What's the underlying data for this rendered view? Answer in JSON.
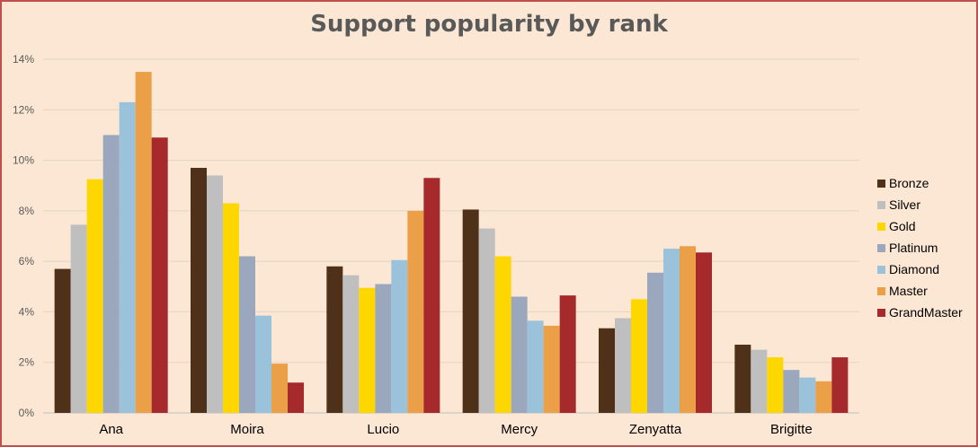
{
  "chart_data": {
    "type": "bar",
    "title": "Support popularity by rank",
    "xlabel": "",
    "ylabel": "",
    "ylim": [
      0,
      14
    ],
    "y_ticks": [
      "0%",
      "2%",
      "4%",
      "6%",
      "8%",
      "10%",
      "12%",
      "14%"
    ],
    "grid": true,
    "legend_position": "right",
    "categories": [
      "Ana",
      "Moira",
      "Lucio",
      "Mercy",
      "Zenyatta",
      "Brigitte"
    ],
    "series": [
      {
        "name": "Bronze",
        "color": "#4e3118",
        "values": [
          5.7,
          9.7,
          5.8,
          8.05,
          3.35,
          2.7
        ]
      },
      {
        "name": "Silver",
        "color": "#bfbfbf",
        "values": [
          7.45,
          9.4,
          5.45,
          7.3,
          3.75,
          2.5
        ]
      },
      {
        "name": "Gold",
        "color": "#ffd700",
        "values": [
          9.25,
          8.3,
          4.95,
          6.2,
          4.5,
          2.2
        ]
      },
      {
        "name": "Platinum",
        "color": "#9ba7bc",
        "values": [
          11.0,
          6.2,
          5.1,
          4.6,
          5.55,
          1.7
        ]
      },
      {
        "name": "Diamond",
        "color": "#9ac3db",
        "values": [
          12.3,
          3.85,
          6.05,
          3.65,
          6.5,
          1.4
        ]
      },
      {
        "name": "Master",
        "color": "#eba048",
        "values": [
          13.5,
          1.95,
          8.0,
          3.45,
          6.6,
          1.25
        ]
      },
      {
        "name": "GrandMaster",
        "color": "#a6292c",
        "values": [
          10.9,
          1.2,
          9.3,
          4.65,
          6.35,
          2.2
        ]
      }
    ]
  }
}
